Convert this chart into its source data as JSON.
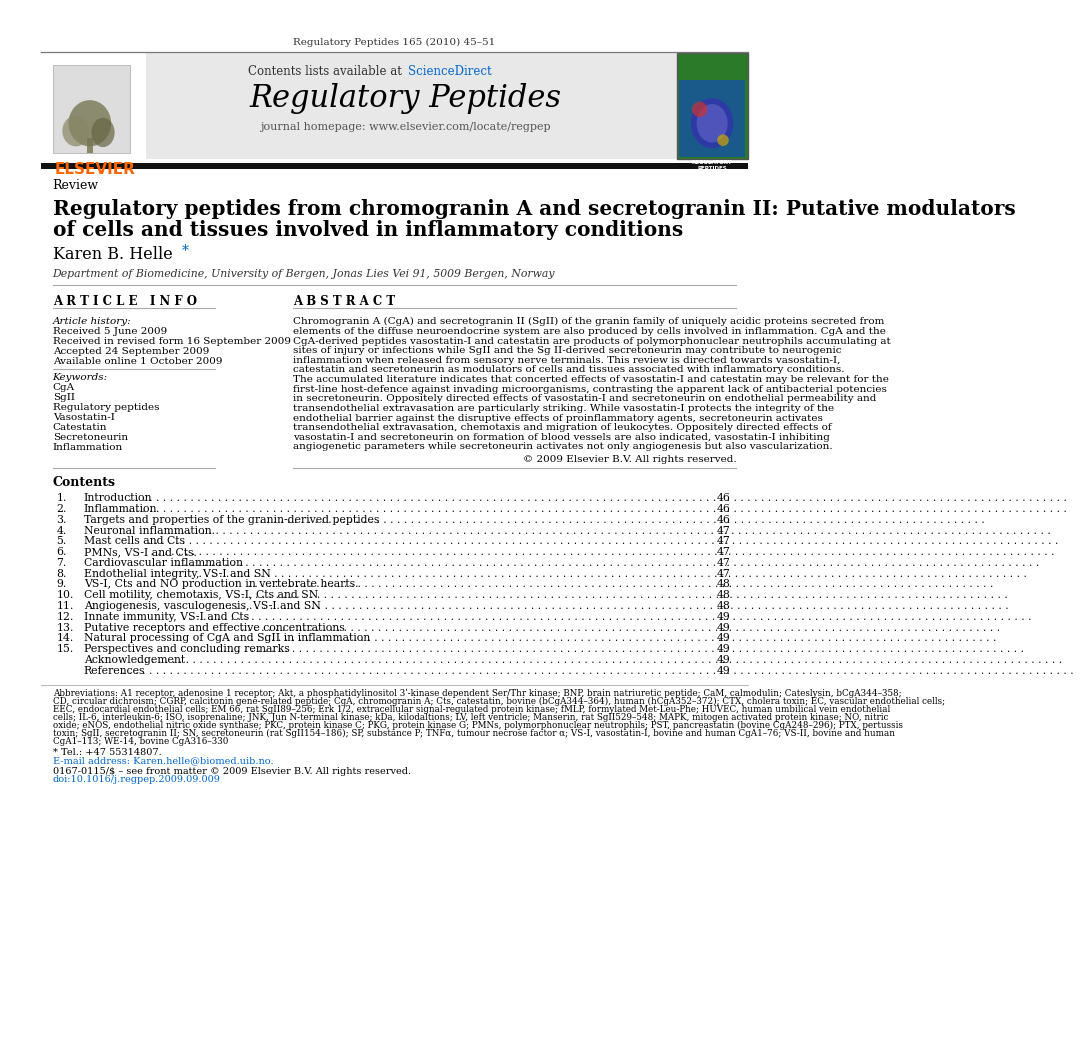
{
  "journal_ref": "Regulatory Peptides 165 (2010) 45–51",
  "contents_label": "Contents lists available at ",
  "sciencedirect": "ScienceDirect",
  "journal_name": "Regulatory Peptides",
  "journal_homepage": "journal homepage: www.elsevier.com/locate/regpep",
  "section_label": "Review",
  "title_line1": "Regulatory peptides from chromogranin A and secretogranin II: Putative modulators",
  "title_line2": "of cells and tissues involved in inflammatory conditions",
  "author": "Karen B. Helle",
  "affiliation": "Department of Biomedicine, University of Bergen, Jonas Lies Vei 91, 5009 Bergen, Norway",
  "article_info_label": "A R T I C L E   I N F O",
  "abstract_label": "A B S T R A C T",
  "article_history_label": "Article history:",
  "received1": "Received 5 June 2009",
  "received2": "Received in revised form 16 September 2009",
  "accepted": "Accepted 24 September 2009",
  "available": "Available online 1 October 2009",
  "keywords_label": "Keywords:",
  "keywords": [
    "CgA",
    "SgII",
    "Regulatory peptides",
    "Vasostatin-I",
    "Catestatin",
    "Secretoneurin",
    "Inflammation"
  ],
  "abstract_lines": [
    "Chromogranin A (CgA) and secretogranin II (SgII) of the granin family of uniquely acidic proteins secreted from",
    "elements of the diffuse neuroendocrine system are also produced by cells involved in inflammation. CgA and the",
    "CgA-derived peptides vasostatin-I and catestatin are products of polymorphonuclear neutrophils accumulating at",
    "sites of injury or infections while SgII and the Sg II-derived secretoneurin may contribute to neurogenic",
    "inflammation when released from sensory nerve terminals. This review is directed towards vasostatin-I,",
    "catestatin and secretoneurin as modulators of cells and tissues associated with inflammatory conditions.",
    "The accumulated literature indicates that concerted effects of vasostatin-I and catestatin may be relevant for the",
    "first-line host-defence against invading microorganisms, contrasting the apparent lack of antibacterial potencies",
    "in secretoneurin. Oppositely directed effects of vasostatin-I and secretoneurin on endothelial permeability and",
    "transendothelial extravasation are particularly striking. While vasostatin-I protects the integrity of the",
    "endothelial barrier against the disruptive effects of proinflammatory agents, secretoneurin activates",
    "transendothelial extravasation, chemotaxis and migration of leukocytes. Oppositely directed effects of",
    "vasostatin-I and secretoneurin on formation of blood vessels are also indicated, vasostatin-I inhibiting",
    "angiogenetic parameters while secretoneurin activates not only angiogenesis but also vascularization."
  ],
  "copyright": "© 2009 Elsevier B.V. All rights reserved.",
  "contents_header": "Contents",
  "toc_entries": [
    [
      "1.",
      "Introduction",
      "46"
    ],
    [
      "2.",
      "Inflammation",
      "46"
    ],
    [
      "3.",
      "Targets and properties of the granin-derived peptides",
      "46"
    ],
    [
      "4.",
      "Neuronal inflammation.",
      "47"
    ],
    [
      "5.",
      "Mast cells and Cts",
      "47"
    ],
    [
      "6.",
      "PMNs, VS-I and Cts.",
      "47"
    ],
    [
      "7.",
      "Cardiovascular inflammation",
      "47"
    ],
    [
      "8.",
      "Endothelial integrity, VS-I and SN",
      "47"
    ],
    [
      "9.",
      "VS-I, Cts and NO production in vertebrate hearts.",
      "48"
    ],
    [
      "10.",
      "Cell motility, chemotaxis, VS-I, Cts and SN",
      "48"
    ],
    [
      "11.",
      "Angiogenesis, vasculogenesis, VS-I and SN",
      "48"
    ],
    [
      "12.",
      "Innate immunity, VS-I and Cts",
      "49"
    ],
    [
      "13.",
      "Putative receptors and effective concentrations",
      "49"
    ],
    [
      "14.",
      "Natural processing of CgA and SgII in inflammation",
      "49"
    ],
    [
      "15.",
      "Perspectives and concluding remarks",
      "49"
    ],
    [
      "",
      "Acknowledgement",
      "49"
    ],
    [
      "",
      "References",
      "49"
    ]
  ],
  "abbrev_lines": [
    "Abbreviations: A1 receptor, adenosine 1 receptor; Akt, a phosphatidylinositol 3ʹ-kinase dependent Ser/Thr kinase; BNP, brain natriuretic peptide; CaM, calmodulin; Cateslysin, bCgA344–358;",
    "CD, circular dichroism; CGRP, calcitonin gene-related peptide; CgA, chromogranin A; Cts, catestatin, bovine (bCgA344–364), human (hCgA352–372); CTX, cholera toxin; EC, vascular endothelial cells;",
    "EEC, endocardial endothelial cells; EM 66, rat SgII89–256; Erk 1/2, extracellular signal-regulated protein kinase; fMLP, formylated Met-Leu-Phe; HUVEC, human umbilical vein endothelial",
    "cells; IL-6, interleukin-6; ISO, isoprenaline; JNK, Jun N-terminal kinase; kDa, kilodaltions; LV, left ventricle; Manserin, rat SgII529–548; MAPK, mitogen activated protein kinase; NO, nitric",
    "oxide; eNOS, endothelial nitric oxide synthase; PKC, protein kinase C; PKG, protein kinase G; PMNs, polymorphonuclear neutrophils; PST, pancreastatin (bovine CgA248–296); PTX, pertussis",
    "toxin; SgII, secretogranin II; SN, secretoneurin (rat SgII154–186); SP, substance P; TNFα, tumour necrose factor α; VS-I, vasostatin-I, bovine and human CgA1–76; VS-II, bovine and human",
    "CgA1–113; WE-14, bovine CgA316–330"
  ],
  "corresponding": "* Tel.: +47 55314807.",
  "email": "E-mail address: Karen.helle@biomed.uib.no.",
  "issn_line": "0167-0115/$ – see front matter © 2009 Elsevier B.V. All rights reserved.",
  "doi_line": "doi:10.1016/j.regpep.2009.09.009",
  "header_bg": "#e8e8e8",
  "elsevier_orange": "#FF6600",
  "sciencedirect_blue": "#0066CC",
  "header_bar_color": "#111111"
}
